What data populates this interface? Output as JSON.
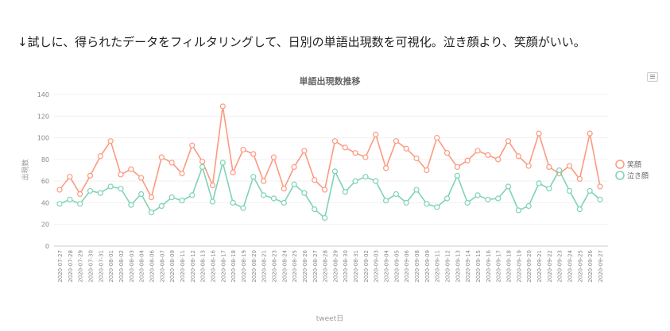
{
  "caption": "↓試しに、得られたデータをフィルタリングして、日別の単語出現数を可視化。泣き顔より、笑顔がいい。",
  "menu_icon": "hamburger-menu-icon",
  "chart_data": {
    "type": "line",
    "title": "単語出現数推移",
    "xlabel": "tweet日",
    "ylabel": "出現数",
    "ylim": [
      0,
      140
    ],
    "yticks": [
      0,
      20,
      40,
      60,
      80,
      100,
      120,
      140
    ],
    "grid": true,
    "legend_position": "right",
    "categories": [
      "2020-07-27",
      "2020-07-28",
      "2020-07-29",
      "2020-07-30",
      "2020-07-31",
      "2020-08-01",
      "2020-08-02",
      "2020-08-03",
      "2020-08-04",
      "2020-08-06",
      "2020-08-07",
      "2020-08-09",
      "2020-08-11",
      "2020-08-12",
      "2020-08-13",
      "2020-08-16",
      "2020-08-17",
      "2020-08-18",
      "2020-08-19",
      "2020-08-20",
      "2020-08-21",
      "2020-08-23",
      "2020-08-24",
      "2020-08-25",
      "2020-08-26",
      "2020-08-27",
      "2020-08-28",
      "2020-08-29",
      "2020-08-30",
      "2020-08-31",
      "2020-09-02",
      "2020-09-03",
      "2020-09-04",
      "2020-09-05",
      "2020-09-06",
      "2020-09-08",
      "2020-09-09",
      "2020-09-11",
      "2020-09-12",
      "2020-09-13",
      "2020-09-14",
      "2020-09-15",
      "2020-09-16",
      "2020-09-17",
      "2020-09-18",
      "2020-09-19",
      "2020-09-20",
      "2020-09-21",
      "2020-09-22",
      "2020-09-23",
      "2020-09-24",
      "2020-09-25",
      "2020-09-26",
      "2020-09-27"
    ],
    "series": [
      {
        "name": "笑顔",
        "color": "#fc9a80",
        "values": [
          52,
          64,
          48,
          65,
          83,
          97,
          66,
          71,
          63,
          45,
          82,
          77,
          67,
          93,
          78,
          56,
          129,
          68,
          89,
          85,
          60,
          82,
          53,
          73,
          88,
          61,
          52,
          97,
          91,
          86,
          82,
          103,
          72,
          97,
          90,
          81,
          70,
          100,
          86,
          73,
          79,
          88,
          84,
          80,
          97,
          83,
          74,
          104,
          73,
          67,
          74,
          62,
          104,
          55
        ]
      },
      {
        "name": "泣き顔",
        "color": "#7fd3b5",
        "values": [
          39,
          43,
          39,
          51,
          49,
          55,
          53,
          38,
          48,
          31,
          37,
          45,
          42,
          47,
          73,
          41,
          77,
          40,
          35,
          64,
          47,
          44,
          40,
          57,
          49,
          34,
          26,
          69,
          50,
          60,
          64,
          60,
          42,
          48,
          40,
          52,
          39,
          36,
          44,
          65,
          40,
          47,
          43,
          44,
          55,
          33,
          37,
          58,
          53,
          70,
          51,
          34,
          51,
          43
        ]
      }
    ]
  }
}
